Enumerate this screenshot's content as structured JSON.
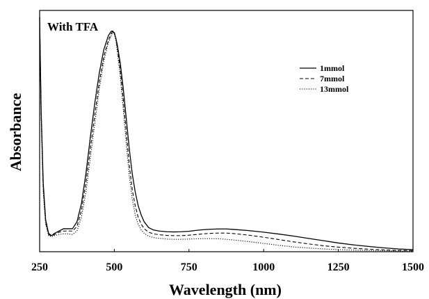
{
  "chart_data": {
    "type": "line",
    "annotation": "With TFA",
    "xlabel": "Wavelength (nm)",
    "ylabel": "Absorbance",
    "xlim": [
      250,
      1500
    ],
    "ylim": [
      0,
      1.05
    ],
    "x_ticks": [
      250,
      500,
      750,
      1000,
      1250,
      1500
    ],
    "x_tick_labels": [
      "250",
      "500",
      "750",
      "1000",
      "1250",
      "1500"
    ],
    "y_ticks_labeled": false,
    "grid": false,
    "legend_position": "top-right",
    "series": [
      {
        "name": "1mmol",
        "dash": "solid",
        "x": [
          250,
          255,
          262,
          270,
          280,
          290,
          300,
          315,
          330,
          345,
          360,
          375,
          390,
          405,
          420,
          435,
          450,
          465,
          480,
          490,
          495,
          500,
          505,
          510,
          520,
          530,
          540,
          550,
          560,
          570,
          580,
          590,
          600,
          615,
          630,
          650,
          675,
          700,
          725,
          750,
          775,
          800,
          825,
          850,
          875,
          900,
          950,
          1000,
          1050,
          1100,
          1150,
          1200,
          1250,
          1300,
          1350,
          1400,
          1450,
          1500
        ],
        "y": [
          1.02,
          0.62,
          0.3,
          0.14,
          0.08,
          0.07,
          0.08,
          0.09,
          0.1,
          0.1,
          0.1,
          0.13,
          0.21,
          0.34,
          0.5,
          0.65,
          0.78,
          0.88,
          0.94,
          0.96,
          0.96,
          0.95,
          0.93,
          0.9,
          0.82,
          0.71,
          0.58,
          0.45,
          0.34,
          0.26,
          0.2,
          0.16,
          0.13,
          0.105,
          0.095,
          0.09,
          0.087,
          0.086,
          0.087,
          0.089,
          0.093,
          0.096,
          0.098,
          0.099,
          0.099,
          0.097,
          0.092,
          0.085,
          0.077,
          0.068,
          0.058,
          0.048,
          0.038,
          0.03,
          0.023,
          0.017,
          0.012,
          0.009
        ]
      },
      {
        "name": "7mmol",
        "dash": "dashed",
        "x": [
          250,
          255,
          262,
          270,
          280,
          290,
          300,
          315,
          330,
          345,
          360,
          375,
          390,
          405,
          420,
          435,
          450,
          465,
          480,
          490,
          495,
          500,
          505,
          510,
          520,
          530,
          540,
          550,
          560,
          570,
          580,
          590,
          600,
          615,
          630,
          650,
          675,
          700,
          725,
          750,
          775,
          800,
          825,
          850,
          875,
          900,
          950,
          1000,
          1050,
          1100,
          1150,
          1200,
          1250,
          1300,
          1350,
          1400,
          1450,
          1500
        ],
        "y": [
          1.02,
          0.6,
          0.28,
          0.13,
          0.075,
          0.068,
          0.075,
          0.085,
          0.09,
          0.09,
          0.09,
          0.11,
          0.18,
          0.3,
          0.45,
          0.6,
          0.74,
          0.85,
          0.92,
          0.95,
          0.96,
          0.955,
          0.93,
          0.89,
          0.79,
          0.66,
          0.52,
          0.38,
          0.27,
          0.2,
          0.15,
          0.12,
          0.1,
          0.085,
          0.078,
          0.074,
          0.071,
          0.07,
          0.07,
          0.072,
          0.075,
          0.078,
          0.08,
          0.081,
          0.081,
          0.079,
          0.072,
          0.063,
          0.053,
          0.043,
          0.034,
          0.026,
          0.02,
          0.015,
          0.011,
          0.008,
          0.006,
          0.005
        ]
      },
      {
        "name": "13mmol",
        "dash": "dotted",
        "x": [
          250,
          255,
          262,
          270,
          280,
          290,
          300,
          315,
          330,
          345,
          360,
          375,
          390,
          405,
          420,
          435,
          450,
          465,
          480,
          490,
          495,
          500,
          505,
          510,
          520,
          530,
          540,
          550,
          560,
          570,
          580,
          590,
          600,
          615,
          630,
          650,
          675,
          700,
          725,
          750,
          775,
          800,
          825,
          850,
          875,
          900,
          950,
          1000,
          1050,
          1100,
          1150,
          1200,
          1250,
          1300,
          1350,
          1400,
          1450,
          1500
        ],
        "y": [
          1.02,
          0.58,
          0.26,
          0.12,
          0.07,
          0.065,
          0.07,
          0.075,
          0.078,
          0.078,
          0.075,
          0.09,
          0.15,
          0.26,
          0.41,
          0.56,
          0.71,
          0.83,
          0.91,
          0.94,
          0.955,
          0.95,
          0.92,
          0.87,
          0.76,
          0.62,
          0.47,
          0.33,
          0.23,
          0.16,
          0.12,
          0.095,
          0.08,
          0.068,
          0.062,
          0.058,
          0.055,
          0.054,
          0.054,
          0.055,
          0.056,
          0.057,
          0.057,
          0.056,
          0.054,
          0.051,
          0.044,
          0.036,
          0.028,
          0.021,
          0.016,
          0.012,
          0.009,
          0.007,
          0.005,
          0.004,
          0.003,
          0.003
        ]
      }
    ]
  }
}
